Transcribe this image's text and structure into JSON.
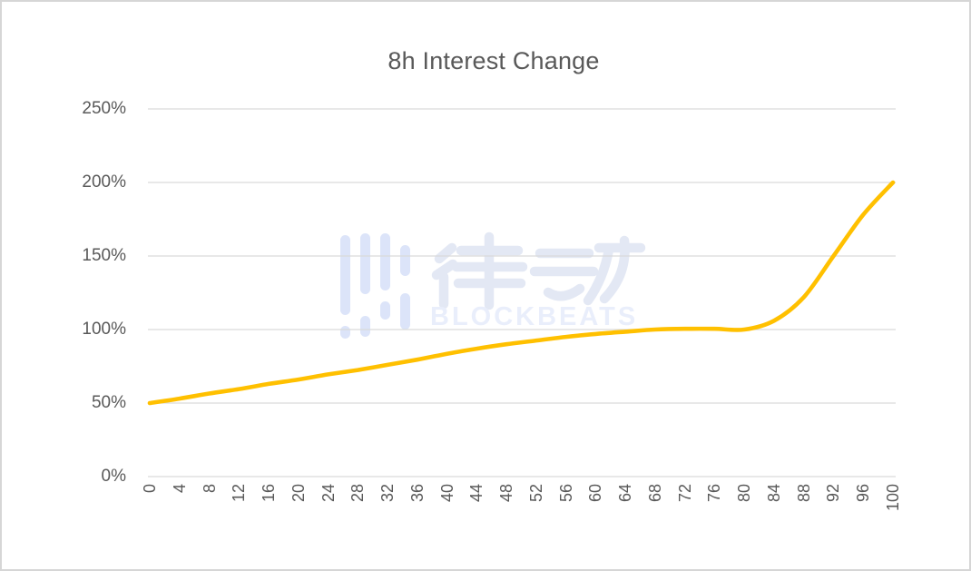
{
  "chart_data": {
    "type": "line",
    "title": "8h Interest Change",
    "xlabel": "",
    "ylabel": "",
    "x": [
      0,
      4,
      8,
      12,
      16,
      20,
      24,
      28,
      32,
      36,
      40,
      44,
      48,
      52,
      56,
      60,
      64,
      68,
      72,
      76,
      80,
      84,
      88,
      92,
      96,
      100
    ],
    "values": [
      50,
      53,
      56.5,
      59.5,
      63,
      66,
      69.5,
      72.5,
      76,
      79.5,
      83.5,
      87,
      90,
      92.5,
      95,
      97,
      98.5,
      100,
      100.5,
      100.5,
      100,
      106,
      122,
      150,
      178,
      200
    ],
    "value_unit": "%",
    "y_ticks": [
      "0%",
      "50%",
      "100%",
      "150%",
      "200%",
      "250%"
    ],
    "ylim": [
      0,
      250
    ],
    "xlim": [
      0,
      100
    ],
    "grid": "horizontal",
    "legend_position": "none",
    "line_color": "#FFC000"
  },
  "colors": {
    "background": "#FFFFFF",
    "border": "#D6D6D6",
    "gridline": "#D9D9D9",
    "label": "#595959",
    "title": "#595959",
    "line": "#FFC000",
    "watermark_bars": "#dce4f9",
    "watermark_glyphs": "#e3e8f4",
    "watermark_latin": "#e9eefb"
  },
  "watermark": {
    "chinese": "律动",
    "latin": "BLOCKBEATS",
    "logo": "equalizer-bars-logo"
  }
}
